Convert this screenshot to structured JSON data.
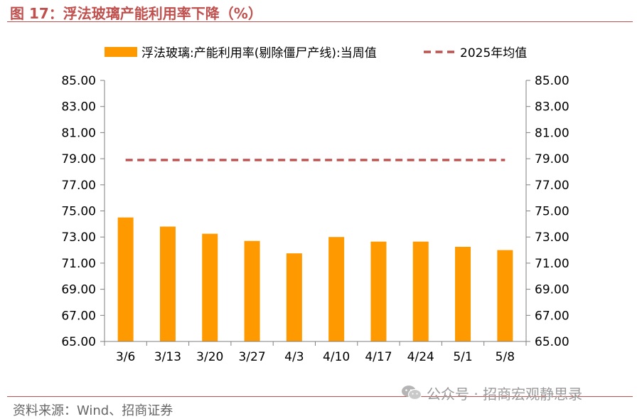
{
  "figure": {
    "title": "图 17：浮法玻璃产能利用率下降（%）",
    "source": "资料来源：Wind、招商证券",
    "watermark": "公众号 · 招商宏观静思录"
  },
  "colors": {
    "accent": "#c0504d",
    "bar": "#ff9900",
    "avg_line": "#c0504d",
    "axis": "#7f7f7f",
    "text": "#000000"
  },
  "chart_data": {
    "type": "bar",
    "categories": [
      "3/6",
      "3/13",
      "3/20",
      "3/27",
      "4/3",
      "4/10",
      "4/17",
      "4/24",
      "5/1",
      "5/8"
    ],
    "series": [
      {
        "name": "浮法玻璃:产能利用率(剔除僵尸产线):当周值",
        "kind": "bar",
        "values": [
          74.5,
          73.8,
          73.25,
          72.7,
          71.75,
          73.0,
          72.65,
          72.65,
          72.25,
          72.0
        ]
      },
      {
        "name": "2025年均值",
        "kind": "dashed-line",
        "values": [
          78.9,
          78.9,
          78.9,
          78.9,
          78.9,
          78.9,
          78.9,
          78.9,
          78.9,
          78.9
        ]
      }
    ],
    "ylim": [
      65,
      85
    ],
    "yticks": [
      "65.00",
      "67.00",
      "69.00",
      "71.00",
      "73.00",
      "75.00",
      "77.00",
      "79.00",
      "81.00",
      "83.00",
      "85.00"
    ],
    "y2ticks": [
      "65.00",
      "67.00",
      "69.00",
      "71.00",
      "73.00",
      "75.00",
      "77.00",
      "79.00",
      "81.00",
      "83.00",
      "85.00"
    ],
    "legend_position": "top",
    "grid": false
  }
}
